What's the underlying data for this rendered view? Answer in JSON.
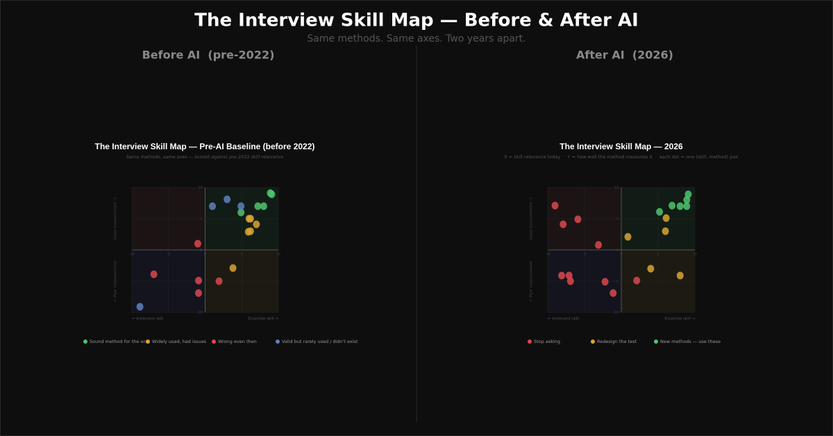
{
  "header": {
    "title": "The Interview Skill Map — Before & After AI",
    "subtitle": "Same methods. Same axes. Two years apart."
  },
  "panels": [
    "Before AI  (pre-2022)",
    "After AI  (2026)"
  ],
  "chart_data": [
    {
      "type": "scatter",
      "title": "The Interview Skill Map — Pre-AI Baseline (before 2022)",
      "subtitle": "Same methods, same axes — scored against pre-2022 skill relevance",
      "x_label_low": "← Irrelevant skill",
      "x_label_high": "Essential skill →",
      "y_label_high": "Good measurement →",
      "y_label_low": "← Poor measurement",
      "xlim": [
        -10,
        10
      ],
      "ylim": [
        -10,
        10
      ],
      "xticks": [
        -10,
        -5,
        0,
        5,
        10
      ],
      "yticks": [
        -10,
        -5,
        0,
        5,
        10
      ],
      "grid": true,
      "series": [
        {
          "name": "Sound method for the era",
          "color": "#4fc46e",
          "x": [
            8.9,
            9.1,
            7.2,
            8.0,
            4.9
          ],
          "values": [
            9.1,
            8.9,
            7.0,
            7.0,
            6.0
          ]
        },
        {
          "name": "Widely used, had issues",
          "color": "#d9a531",
          "x": [
            6.0,
            6.2,
            7.0,
            5.9,
            6.2,
            3.8
          ],
          "values": [
            5.0,
            5.0,
            4.1,
            2.9,
            3.0,
            -2.9
          ]
        },
        {
          "name": "Wrong even then",
          "color": "#d9484f",
          "x": [
            -1.0,
            -7.0,
            -0.9,
            1.9,
            -0.9
          ],
          "values": [
            1.0,
            -3.9,
            -4.9,
            -5.0,
            -6.9
          ]
        },
        {
          "name": "Valid but rarely used / didn't exist",
          "color": "#5f7fbf",
          "x": [
            1.0,
            3.0,
            4.9,
            -8.9
          ],
          "values": [
            7.0,
            8.1,
            7.0,
            -9.1
          ]
        }
      ]
    },
    {
      "type": "scatter",
      "title": "The Interview Skill Map — 2026",
      "subtitle": "X = skill relevance today  ·  Y = how well the method measures it  ·  each dot = one (skill, method) pair",
      "x_label_low": "← Irrelevant skill",
      "x_label_high": "Essential skill →",
      "y_label_high": "Good measurement →",
      "y_label_low": "← Poor measurement",
      "xlim": [
        -10,
        10
      ],
      "ylim": [
        -10,
        10
      ],
      "xticks": [
        -10,
        -5,
        0,
        5,
        10
      ],
      "yticks": [
        -10,
        -5,
        0,
        5,
        10
      ],
      "grid": true,
      "series": [
        {
          "name": "Stop asking",
          "color": "#d9484f",
          "x": [
            -9.0,
            -7.9,
            -5.9,
            -3.1,
            -8.1,
            -7.1,
            -6.9,
            -2.2,
            -1.1,
            2.1
          ],
          "values": [
            7.1,
            4.1,
            4.9,
            0.8,
            -4.1,
            -4.1,
            -5.0,
            -5.1,
            -6.9,
            -4.9
          ]
        },
        {
          "name": "Redesign the test",
          "color": "#d9a531",
          "x": [
            0.9,
            6.1,
            6.0,
            4.0,
            8.0
          ],
          "values": [
            2.1,
            5.1,
            3.0,
            -3.0,
            -4.1
          ]
        },
        {
          "name": "New methods — use these",
          "color": "#4fc46e",
          "x": [
            9.1,
            8.9,
            8.9,
            6.9,
            8.0,
            5.2
          ],
          "values": [
            8.9,
            8.0,
            7.0,
            7.1,
            7.0,
            6.1
          ]
        }
      ]
    }
  ]
}
